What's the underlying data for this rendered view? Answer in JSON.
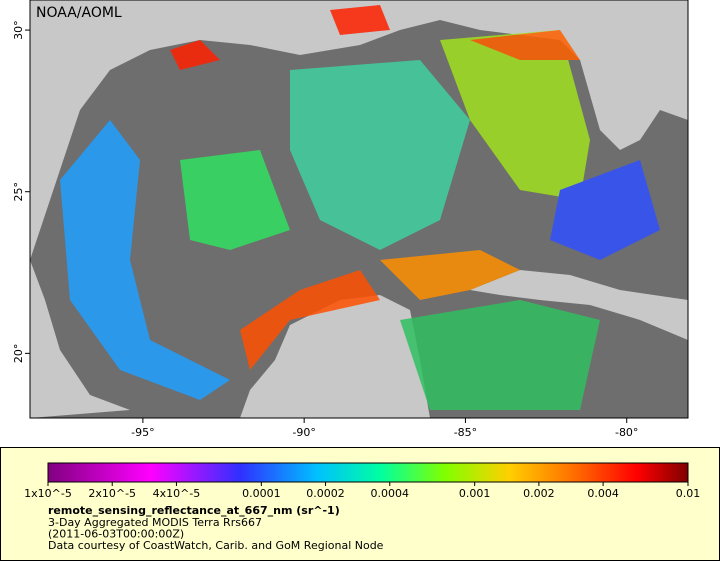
{
  "map": {
    "credit": "NOAA/AOML",
    "xlim": [
      -98.5,
      -78.1
    ],
    "ylim": [
      18,
      30.93
    ],
    "xticks": [
      {
        "value": -95,
        "label": "-95°"
      },
      {
        "value": -90,
        "label": "-90°"
      },
      {
        "value": -85,
        "label": "-85°"
      },
      {
        "value": -80,
        "label": "-80°"
      }
    ],
    "yticks": [
      {
        "value": 20,
        "label": "20°"
      },
      {
        "value": 25,
        "label": "25°"
      },
      {
        "value": 30,
        "label": "30°"
      }
    ]
  },
  "colorbar": {
    "scale": "log",
    "lim": [
      1e-05,
      0.01
    ],
    "ticks": [
      {
        "value": 1e-05,
        "label": "1x10^-5"
      },
      {
        "value": 2e-05,
        "label": "2x10^-5"
      },
      {
        "value": 4e-05,
        "label": "4x10^-5"
      },
      0.0001,
      0.0002,
      0.0004,
      0.001,
      0.002,
      0.004,
      0.01
    ]
  },
  "legend": {
    "variable": "remote_sensing_reflectance_at_667_nm (sr^-1)",
    "lines": [
      "3-Day Aggregated MODIS Terra Rrs667",
      "(2011-06-03T00:00:00Z)",
      "Data courtesy of CoastWatch, Carib. and GoM Regional Node"
    ]
  }
}
